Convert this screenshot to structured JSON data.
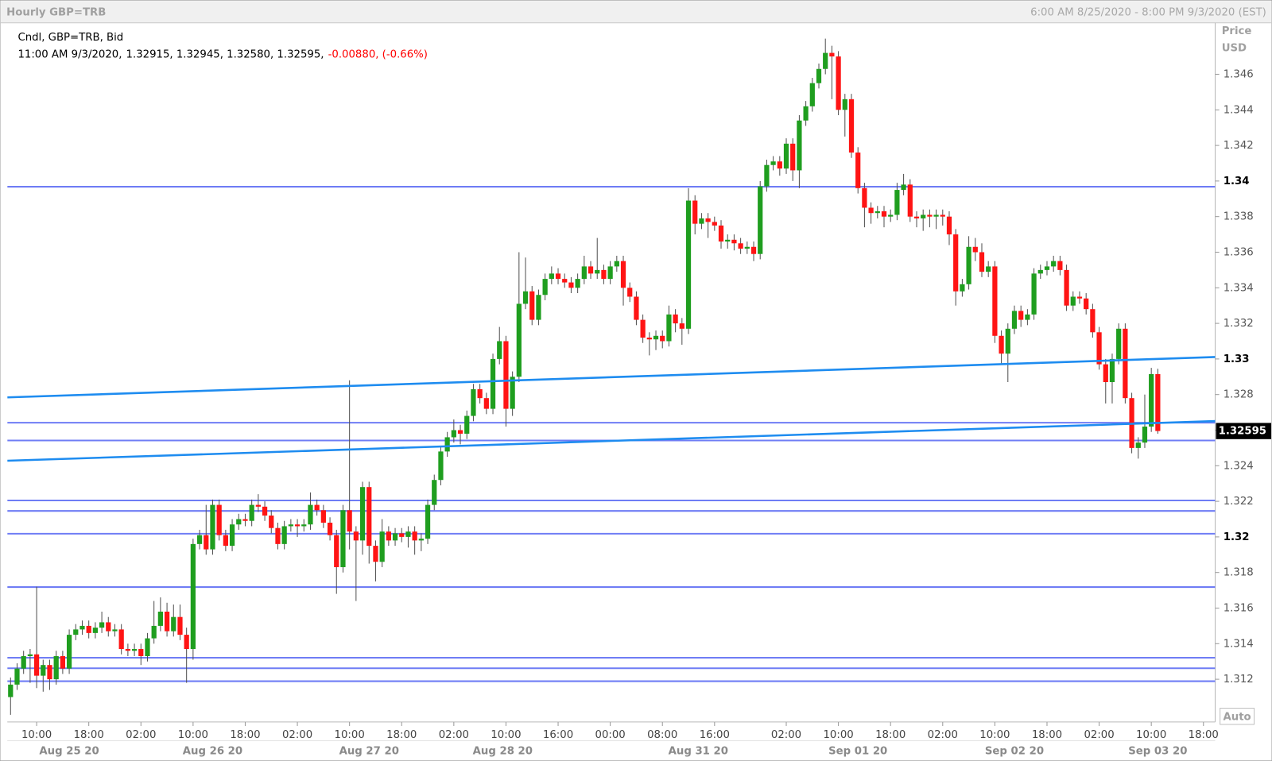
{
  "chart_data": {
    "type": "candlestick",
    "title": "Hourly GBP=TRB",
    "range_text": "6:00 AM 8/25/2020 - 8:00 PM 9/3/2020 (EST)",
    "legend": "Cndl, GBP=TRB, Bid",
    "info_time": "11:00 AM 9/3/2020,",
    "info_ohlc": "1.32915, 1.32945, 1.32580, 1.32595,",
    "info_change": "-0.00880, (-0.66%)",
    "y_title": "Price",
    "y_unit": "USD",
    "auto_label": "Auto",
    "last_price": 1.32595,
    "up_color": "#1f9e1f",
    "down_color": "#ff1414",
    "level_color": "#6f7df5",
    "trend_color": "#1e8cf0",
    "ylim": [
      1.3096,
      1.3488
    ],
    "yticks": [
      1.312,
      1.314,
      1.316,
      1.318,
      1.32,
      1.322,
      1.324,
      1.326,
      1.328,
      1.33,
      1.332,
      1.334,
      1.336,
      1.338,
      1.34,
      1.342,
      1.344,
      1.346
    ],
    "xlim": [
      -0.5,
      184.8
    ],
    "xticks": [
      {
        "value": 4,
        "label": "10:00"
      },
      {
        "value": 12,
        "label": "18:00"
      },
      {
        "value": 20,
        "label": "02:00"
      },
      {
        "value": 28,
        "label": "10:00"
      },
      {
        "value": 36,
        "label": "18:00"
      },
      {
        "value": 44,
        "label": "02:00"
      },
      {
        "value": 52,
        "label": "10:00"
      },
      {
        "value": 60,
        "label": "18:00"
      },
      {
        "value": 68,
        "label": "02:00"
      },
      {
        "value": 76,
        "label": "10:00"
      },
      {
        "value": 84,
        "label": "16:00"
      },
      {
        "value": 92,
        "label": "00:00"
      },
      {
        "value": 100,
        "label": "08:00"
      },
      {
        "value": 108,
        "label": "16:00"
      },
      {
        "value": 119,
        "label": "02:00"
      },
      {
        "value": 127,
        "label": "10:00"
      },
      {
        "value": 135,
        "label": "18:00"
      },
      {
        "value": 143,
        "label": "02:00"
      },
      {
        "value": 151,
        "label": "10:00"
      },
      {
        "value": 159,
        "label": "18:00"
      },
      {
        "value": 167,
        "label": "02:00"
      },
      {
        "value": 175,
        "label": "10:00"
      },
      {
        "value": 183,
        "label": "18:00"
      }
    ],
    "date_ticks": [
      {
        "value": 9,
        "label": "Aug 25 20"
      },
      {
        "value": 31,
        "label": "Aug 26 20"
      },
      {
        "value": 55,
        "label": "Aug 27 20"
      },
      {
        "value": 75.5,
        "label": "Aug 28 20"
      },
      {
        "value": 105.5,
        "label": "Aug 31 20"
      },
      {
        "value": 130,
        "label": "Sep 01 20"
      },
      {
        "value": 154,
        "label": "Sep 02 20"
      },
      {
        "value": 176,
        "label": "Sep 03 20"
      }
    ],
    "levels": [
      1.33968,
      1.32642,
      1.32542,
      1.32205,
      1.32146,
      1.32018,
      1.31718,
      1.31321,
      1.31262,
      1.31189
    ],
    "trendlines": [
      {
        "x": [
          -0.5,
          184.8
        ],
        "values": [
          1.32784,
          1.33011
        ]
      },
      {
        "x": [
          -0.5,
          184.8
        ],
        "values": [
          1.32428,
          1.32651
        ]
      }
    ],
    "candles": [
      [
        1.311,
        1.3121,
        1.31,
        1.3117
      ],
      [
        1.3117,
        1.3129,
        1.3114,
        1.3126
      ],
      [
        1.3126,
        1.3136,
        1.3123,
        1.3133
      ],
      [
        1.3133,
        1.3137,
        1.3118,
        1.3134
      ],
      [
        1.3134,
        1.3172,
        1.3115,
        1.3122
      ],
      [
        1.3122,
        1.3131,
        1.3113,
        1.3128
      ],
      [
        1.3128,
        1.3131,
        1.3114,
        1.312
      ],
      [
        1.312,
        1.3136,
        1.3117,
        1.3133
      ],
      [
        1.3133,
        1.3136,
        1.3123,
        1.3126
      ],
      [
        1.3126,
        1.3148,
        1.3123,
        1.3145
      ],
      [
        1.3145,
        1.3151,
        1.3142,
        1.3148
      ],
      [
        1.3148,
        1.3153,
        1.3145,
        1.315
      ],
      [
        1.315,
        1.3153,
        1.3143,
        1.3146
      ],
      [
        1.3146,
        1.3152,
        1.3143,
        1.3149
      ],
      [
        1.3149,
        1.3158,
        1.3146,
        1.3152
      ],
      [
        1.3152,
        1.3155,
        1.3144,
        1.3147
      ],
      [
        1.3147,
        1.3151,
        1.3144,
        1.3148
      ],
      [
        1.3148,
        1.3151,
        1.3134,
        1.3137
      ],
      [
        1.3137,
        1.314,
        1.3133,
        1.3136
      ],
      [
        1.3136,
        1.314,
        1.3133,
        1.3137
      ],
      [
        1.3137,
        1.314,
        1.3128,
        1.3133
      ],
      [
        1.3133,
        1.3146,
        1.313,
        1.3143
      ],
      [
        1.3143,
        1.3164,
        1.314,
        1.315
      ],
      [
        1.315,
        1.3166,
        1.3147,
        1.3158
      ],
      [
        1.3158,
        1.3163,
        1.3144,
        1.3147
      ],
      [
        1.3147,
        1.3162,
        1.3144,
        1.3155
      ],
      [
        1.3155,
        1.3162,
        1.3142,
        1.3145
      ],
      [
        1.3145,
        1.3149,
        1.3118,
        1.3137
      ],
      [
        1.3137,
        1.3199,
        1.3131,
        1.3196
      ],
      [
        1.3196,
        1.3204,
        1.3193,
        1.3201
      ],
      [
        1.3201,
        1.3218,
        1.319,
        1.3193
      ],
      [
        1.3193,
        1.3221,
        1.319,
        1.3218
      ],
      [
        1.3218,
        1.3221,
        1.3198,
        1.3201
      ],
      [
        1.3201,
        1.3204,
        1.3192,
        1.3195
      ],
      [
        1.3195,
        1.321,
        1.3192,
        1.3207
      ],
      [
        1.3207,
        1.3213,
        1.3204,
        1.321
      ],
      [
        1.321,
        1.3213,
        1.3206,
        1.3209
      ],
      [
        1.3209,
        1.3221,
        1.3206,
        1.3218
      ],
      [
        1.3218,
        1.3224,
        1.3214,
        1.3217
      ],
      [
        1.3217,
        1.322,
        1.3209,
        1.3212
      ],
      [
        1.3212,
        1.3215,
        1.3202,
        1.3205
      ],
      [
        1.3205,
        1.3208,
        1.3193,
        1.3196
      ],
      [
        1.3196,
        1.3209,
        1.3193,
        1.3206
      ],
      [
        1.3206,
        1.321,
        1.3203,
        1.3207
      ],
      [
        1.3207,
        1.321,
        1.32,
        1.3206
      ],
      [
        1.3206,
        1.321,
        1.3203,
        1.3207
      ],
      [
        1.3207,
        1.3225,
        1.3204,
        1.3218
      ],
      [
        1.3218,
        1.3221,
        1.3212,
        1.3215
      ],
      [
        1.3215,
        1.3218,
        1.3205,
        1.3208
      ],
      [
        1.3208,
        1.3211,
        1.3198,
        1.3201
      ],
      [
        1.3201,
        1.3204,
        1.3168,
        1.3183
      ],
      [
        1.3183,
        1.3218,
        1.318,
        1.3215
      ],
      [
        1.3215,
        1.3288,
        1.3193,
        1.3203
      ],
      [
        1.3203,
        1.3206,
        1.3164,
        1.3198
      ],
      [
        1.3198,
        1.3231,
        1.319,
        1.3228
      ],
      [
        1.3228,
        1.3231,
        1.3185,
        1.3195
      ],
      [
        1.3195,
        1.3198,
        1.3175,
        1.3186
      ],
      [
        1.3186,
        1.321,
        1.3183,
        1.3203
      ],
      [
        1.3203,
        1.3206,
        1.3195,
        1.3198
      ],
      [
        1.3198,
        1.3205,
        1.3195,
        1.3202
      ],
      [
        1.3202,
        1.3205,
        1.3197,
        1.32
      ],
      [
        1.32,
        1.3206,
        1.3194,
        1.3203
      ],
      [
        1.3203,
        1.3206,
        1.319,
        1.3198
      ],
      [
        1.3198,
        1.3202,
        1.3192,
        1.3199
      ],
      [
        1.3199,
        1.3221,
        1.3196,
        1.3218
      ],
      [
        1.3218,
        1.3235,
        1.3215,
        1.3232
      ],
      [
        1.3232,
        1.3251,
        1.3229,
        1.3248
      ],
      [
        1.3248,
        1.3259,
        1.3245,
        1.3256
      ],
      [
        1.3256,
        1.3266,
        1.3253,
        1.326
      ],
      [
        1.326,
        1.3263,
        1.3252,
        1.3258
      ],
      [
        1.3258,
        1.3271,
        1.3255,
        1.3268
      ],
      [
        1.3268,
        1.3286,
        1.3265,
        1.3283
      ],
      [
        1.3283,
        1.3286,
        1.3275,
        1.3278
      ],
      [
        1.3278,
        1.3281,
        1.3269,
        1.3272
      ],
      [
        1.3272,
        1.3303,
        1.3269,
        1.33
      ],
      [
        1.33,
        1.3318,
        1.3297,
        1.331
      ],
      [
        1.331,
        1.3313,
        1.3262,
        1.3272
      ],
      [
        1.3272,
        1.3293,
        1.3268,
        1.329
      ],
      [
        1.329,
        1.336,
        1.3287,
        1.3331
      ],
      [
        1.3331,
        1.3357,
        1.3328,
        1.3338
      ],
      [
        1.3338,
        1.3341,
        1.3319,
        1.3322
      ],
      [
        1.3322,
        1.3339,
        1.3319,
        1.3336
      ],
      [
        1.3336,
        1.3348,
        1.3333,
        1.3345
      ],
      [
        1.3345,
        1.3352,
        1.3342,
        1.3348
      ],
      [
        1.3348,
        1.3351,
        1.3342,
        1.3345
      ],
      [
        1.3345,
        1.3348,
        1.334,
        1.3343
      ],
      [
        1.3343,
        1.3346,
        1.3337,
        1.334
      ],
      [
        1.334,
        1.3348,
        1.3337,
        1.3345
      ],
      [
        1.3345,
        1.3358,
        1.3342,
        1.3352
      ],
      [
        1.3352,
        1.3355,
        1.3345,
        1.3348
      ],
      [
        1.3348,
        1.3368,
        1.3345,
        1.335
      ],
      [
        1.335,
        1.3353,
        1.3342,
        1.3345
      ],
      [
        1.3345,
        1.3355,
        1.3342,
        1.3352
      ],
      [
        1.3352,
        1.3358,
        1.3349,
        1.3355
      ],
      [
        1.3355,
        1.3358,
        1.333,
        1.334
      ],
      [
        1.334,
        1.3343,
        1.3332,
        1.3335
      ],
      [
        1.3335,
        1.3338,
        1.3319,
        1.3322
      ],
      [
        1.3322,
        1.3325,
        1.3309,
        1.3312
      ],
      [
        1.3312,
        1.3315,
        1.3302,
        1.3311
      ],
      [
        1.3311,
        1.3316,
        1.3305,
        1.3313
      ],
      [
        1.3313,
        1.3316,
        1.3306,
        1.331
      ],
      [
        1.331,
        1.333,
        1.3307,
        1.3325
      ],
      [
        1.3325,
        1.3328,
        1.3315,
        1.332
      ],
      [
        1.332,
        1.3323,
        1.3308,
        1.3317
      ],
      [
        1.3317,
        1.3396,
        1.3314,
        1.3389
      ],
      [
        1.3389,
        1.3392,
        1.337,
        1.3376
      ],
      [
        1.3376,
        1.3382,
        1.3373,
        1.3379
      ],
      [
        1.3379,
        1.3382,
        1.3368,
        1.3377
      ],
      [
        1.3377,
        1.338,
        1.3372,
        1.3375
      ],
      [
        1.3375,
        1.3378,
        1.3362,
        1.3366
      ],
      [
        1.3366,
        1.337,
        1.3362,
        1.3367
      ],
      [
        1.3367,
        1.337,
        1.3361,
        1.3365
      ],
      [
        1.3365,
        1.3368,
        1.3359,
        1.3362
      ],
      [
        1.3362,
        1.3366,
        1.3359,
        1.3363
      ],
      [
        1.3363,
        1.3366,
        1.3355,
        1.3359
      ],
      [
        1.3359,
        1.34,
        1.3356,
        1.3397
      ],
      [
        1.3397,
        1.3412,
        1.3394,
        1.3409
      ],
      [
        1.3409,
        1.3414,
        1.3406,
        1.3411
      ],
      [
        1.3411,
        1.3414,
        1.3403,
        1.3407
      ],
      [
        1.3407,
        1.3424,
        1.3404,
        1.3421
      ],
      [
        1.3421,
        1.3424,
        1.34,
        1.3406
      ],
      [
        1.3406,
        1.3437,
        1.3396,
        1.3434
      ],
      [
        1.3434,
        1.3445,
        1.3431,
        1.3442
      ],
      [
        1.3442,
        1.3458,
        1.3439,
        1.3455
      ],
      [
        1.3455,
        1.3466,
        1.3452,
        1.3463
      ],
      [
        1.3463,
        1.348,
        1.346,
        1.3472
      ],
      [
        1.3472,
        1.3476,
        1.3446,
        1.347
      ],
      [
        1.347,
        1.3473,
        1.3437,
        1.344
      ],
      [
        1.344,
        1.3449,
        1.3425,
        1.3446
      ],
      [
        1.3446,
        1.3449,
        1.3413,
        1.3416
      ],
      [
        1.3416,
        1.3419,
        1.3393,
        1.3396
      ],
      [
        1.3396,
        1.3399,
        1.3374,
        1.3385
      ],
      [
        1.3385,
        1.3388,
        1.3376,
        1.3382
      ],
      [
        1.3382,
        1.3386,
        1.3379,
        1.3383
      ],
      [
        1.3383,
        1.3386,
        1.3374,
        1.338
      ],
      [
        1.338,
        1.3384,
        1.3377,
        1.3381
      ],
      [
        1.3381,
        1.3399,
        1.3378,
        1.3395
      ],
      [
        1.3395,
        1.3404,
        1.3392,
        1.3398
      ],
      [
        1.3398,
        1.3401,
        1.3377,
        1.338
      ],
      [
        1.338,
        1.3383,
        1.3374,
        1.3379
      ],
      [
        1.3379,
        1.3384,
        1.3372,
        1.3381
      ],
      [
        1.3381,
        1.3384,
        1.3374,
        1.338
      ],
      [
        1.338,
        1.3384,
        1.3373,
        1.3381
      ],
      [
        1.3381,
        1.3384,
        1.3375,
        1.338
      ],
      [
        1.338,
        1.3383,
        1.3364,
        1.337
      ],
      [
        1.337,
        1.3373,
        1.333,
        1.3338
      ],
      [
        1.3338,
        1.3345,
        1.3335,
        1.3342
      ],
      [
        1.3342,
        1.3369,
        1.3339,
        1.3363
      ],
      [
        1.3363,
        1.3368,
        1.3355,
        1.336
      ],
      [
        1.336,
        1.3365,
        1.3346,
        1.3349
      ],
      [
        1.3349,
        1.3355,
        1.3346,
        1.3352
      ],
      [
        1.3352,
        1.3355,
        1.3309,
        1.3313
      ],
      [
        1.3313,
        1.3316,
        1.3297,
        1.3303
      ],
      [
        1.3303,
        1.332,
        1.3287,
        1.3317
      ],
      [
        1.3317,
        1.333,
        1.3314,
        1.3327
      ],
      [
        1.3327,
        1.333,
        1.3318,
        1.3322
      ],
      [
        1.3322,
        1.3328,
        1.3319,
        1.3325
      ],
      [
        1.3325,
        1.3351,
        1.3322,
        1.3348
      ],
      [
        1.3348,
        1.3353,
        1.3345,
        1.335
      ],
      [
        1.335,
        1.3355,
        1.3347,
        1.3352
      ],
      [
        1.3352,
        1.3358,
        1.3349,
        1.3355
      ],
      [
        1.3355,
        1.3358,
        1.3347,
        1.335
      ],
      [
        1.335,
        1.3353,
        1.3327,
        1.333
      ],
      [
        1.333,
        1.3338,
        1.3327,
        1.3335
      ],
      [
        1.3335,
        1.3338,
        1.3331,
        1.3334
      ],
      [
        1.3334,
        1.3337,
        1.3325,
        1.3328
      ],
      [
        1.3328,
        1.3331,
        1.3312,
        1.3315
      ],
      [
        1.3315,
        1.3318,
        1.3294,
        1.3297
      ],
      [
        1.3297,
        1.33,
        1.3275,
        1.3287
      ],
      [
        1.3287,
        1.3303,
        1.3275,
        1.33
      ],
      [
        1.33,
        1.332,
        1.3297,
        1.3317
      ],
      [
        1.3317,
        1.332,
        1.3275,
        1.3278
      ],
      [
        1.3278,
        1.3281,
        1.3247,
        1.325
      ],
      [
        1.325,
        1.3256,
        1.3244,
        1.3253
      ],
      [
        1.3253,
        1.328,
        1.325,
        1.3262
      ],
      [
        1.3262,
        1.3295,
        1.3259,
        1.32915
      ],
      [
        1.32915,
        1.32945,
        1.3258,
        1.32595
      ]
    ]
  }
}
